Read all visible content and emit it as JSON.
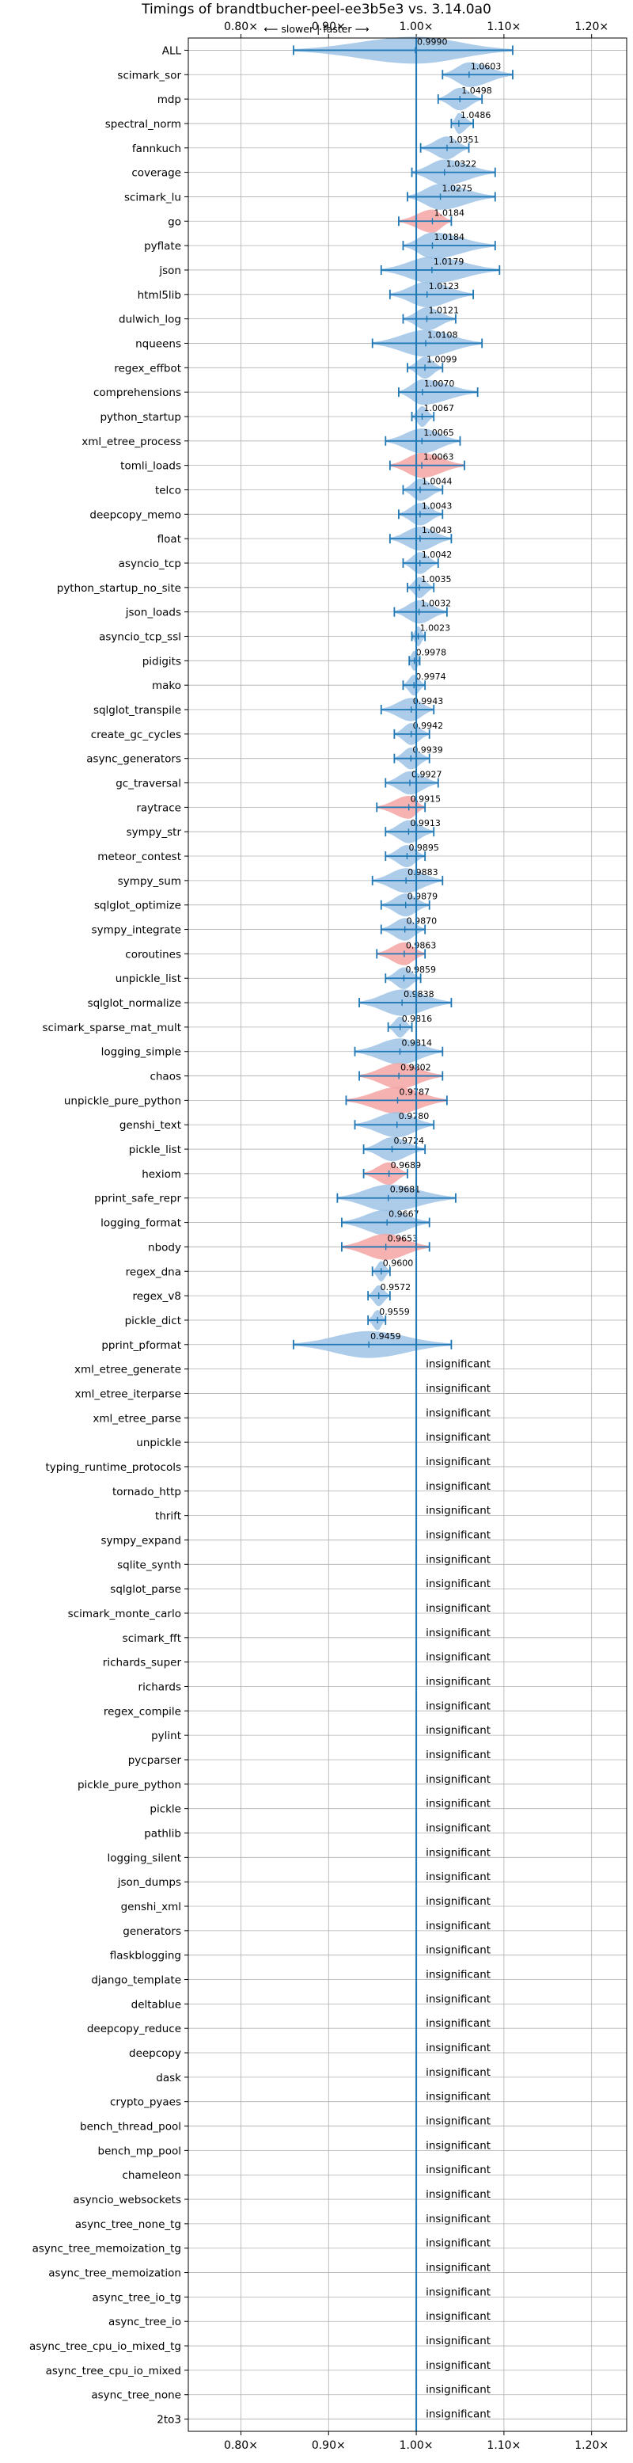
{
  "chart_data": {
    "type": "violin",
    "title": "Timings of brandtbucher-peel-ee3b5e3 vs. 3.14.0a0",
    "direction_note": "⟵ slower | faster ⟶",
    "xlim": [
      0.74,
      1.24
    ],
    "x_ticks": [
      0.8,
      0.9,
      1.0,
      1.1,
      1.2
    ],
    "x_tick_labels": [
      "0.80×",
      "0.90×",
      "1.00×",
      "1.10×",
      "1.20×"
    ],
    "tick_labels_top_and_bottom": true,
    "grid": true,
    "reference_line": 1.0,
    "colors": {
      "faster": "#9ec3e6",
      "slower": "#f4a3a3",
      "whisker": "#1f77b4",
      "grid": "#b0b0b0",
      "reference": "#1f77b4"
    },
    "insignificant_label": "insignificant",
    "benchmarks": [
      {
        "name": "ALL",
        "value": 0.999,
        "label": "0.9990",
        "lo": 0.86,
        "hi": 1.11,
        "color": "faster"
      },
      {
        "name": "scimark_sor",
        "value": 1.0603,
        "label": "1.0603",
        "lo": 1.03,
        "hi": 1.11,
        "color": "faster"
      },
      {
        "name": "mdp",
        "value": 1.0498,
        "label": "1.0498",
        "lo": 1.025,
        "hi": 1.075,
        "color": "faster"
      },
      {
        "name": "spectral_norm",
        "value": 1.0486,
        "label": "1.0486",
        "lo": 1.04,
        "hi": 1.065,
        "color": "faster"
      },
      {
        "name": "fannkuch",
        "value": 1.0351,
        "label": "1.0351",
        "lo": 1.005,
        "hi": 1.06,
        "color": "faster"
      },
      {
        "name": "coverage",
        "value": 1.0322,
        "label": "1.0322",
        "lo": 0.995,
        "hi": 1.09,
        "color": "faster"
      },
      {
        "name": "scimark_lu",
        "value": 1.0275,
        "label": "1.0275",
        "lo": 0.99,
        "hi": 1.09,
        "color": "faster"
      },
      {
        "name": "go",
        "value": 1.0184,
        "label": "1.0184",
        "lo": 0.98,
        "hi": 1.04,
        "color": "slower"
      },
      {
        "name": "pyflate",
        "value": 1.0184,
        "label": "1.0184",
        "lo": 0.985,
        "hi": 1.09,
        "color": "faster"
      },
      {
        "name": "json",
        "value": 1.0179,
        "label": "1.0179",
        "lo": 0.96,
        "hi": 1.095,
        "color": "faster"
      },
      {
        "name": "html5lib",
        "value": 1.0123,
        "label": "1.0123",
        "lo": 0.97,
        "hi": 1.065,
        "color": "faster"
      },
      {
        "name": "dulwich_log",
        "value": 1.0121,
        "label": "1.0121",
        "lo": 0.985,
        "hi": 1.045,
        "color": "faster"
      },
      {
        "name": "nqueens",
        "value": 1.0108,
        "label": "1.0108",
        "lo": 0.95,
        "hi": 1.075,
        "color": "faster"
      },
      {
        "name": "regex_effbot",
        "value": 1.0099,
        "label": "1.0099",
        "lo": 0.99,
        "hi": 1.03,
        "color": "faster"
      },
      {
        "name": "comprehensions",
        "value": 1.007,
        "label": "1.0070",
        "lo": 0.98,
        "hi": 1.07,
        "color": "faster"
      },
      {
        "name": "python_startup",
        "value": 1.0067,
        "label": "1.0067",
        "lo": 0.995,
        "hi": 1.02,
        "color": "faster"
      },
      {
        "name": "xml_etree_process",
        "value": 1.0065,
        "label": "1.0065",
        "lo": 0.965,
        "hi": 1.05,
        "color": "faster"
      },
      {
        "name": "tomli_loads",
        "value": 1.0063,
        "label": "1.0063",
        "lo": 0.97,
        "hi": 1.055,
        "color": "slower"
      },
      {
        "name": "telco",
        "value": 1.0044,
        "label": "1.0044",
        "lo": 0.985,
        "hi": 1.03,
        "color": "faster"
      },
      {
        "name": "deepcopy_memo",
        "value": 1.0043,
        "label": "1.0043",
        "lo": 0.98,
        "hi": 1.03,
        "color": "faster"
      },
      {
        "name": "float",
        "value": 1.0043,
        "label": "1.0043",
        "lo": 0.97,
        "hi": 1.04,
        "color": "faster"
      },
      {
        "name": "asyncio_tcp",
        "value": 1.0042,
        "label": "1.0042",
        "lo": 0.985,
        "hi": 1.025,
        "color": "faster"
      },
      {
        "name": "python_startup_no_site",
        "value": 1.0035,
        "label": "1.0035",
        "lo": 0.99,
        "hi": 1.02,
        "color": "faster"
      },
      {
        "name": "json_loads",
        "value": 1.0032,
        "label": "1.0032",
        "lo": 0.975,
        "hi": 1.035,
        "color": "faster"
      },
      {
        "name": "asyncio_tcp_ssl",
        "value": 1.0023,
        "label": "1.0023",
        "lo": 0.995,
        "hi": 1.01,
        "color": "faster"
      },
      {
        "name": "pidigits",
        "value": 0.9978,
        "label": "0.9978",
        "lo": 0.992,
        "hi": 1.004,
        "color": "faster"
      },
      {
        "name": "mako",
        "value": 0.9974,
        "label": "0.9974",
        "lo": 0.985,
        "hi": 1.01,
        "color": "faster"
      },
      {
        "name": "sqlglot_transpile",
        "value": 0.9943,
        "label": "0.9943",
        "lo": 0.96,
        "hi": 1.02,
        "color": "faster"
      },
      {
        "name": "create_gc_cycles",
        "value": 0.9942,
        "label": "0.9942",
        "lo": 0.975,
        "hi": 1.015,
        "color": "faster"
      },
      {
        "name": "async_generators",
        "value": 0.9939,
        "label": "0.9939",
        "lo": 0.975,
        "hi": 1.015,
        "color": "faster"
      },
      {
        "name": "gc_traversal",
        "value": 0.9927,
        "label": "0.9927",
        "lo": 0.965,
        "hi": 1.025,
        "color": "faster"
      },
      {
        "name": "raytrace",
        "value": 0.9915,
        "label": "0.9915",
        "lo": 0.955,
        "hi": 1.01,
        "color": "slower"
      },
      {
        "name": "sympy_str",
        "value": 0.9913,
        "label": "0.9913",
        "lo": 0.965,
        "hi": 1.02,
        "color": "faster"
      },
      {
        "name": "meteor_contest",
        "value": 0.9895,
        "label": "0.9895",
        "lo": 0.965,
        "hi": 1.01,
        "color": "faster"
      },
      {
        "name": "sympy_sum",
        "value": 0.9883,
        "label": "0.9883",
        "lo": 0.95,
        "hi": 1.03,
        "color": "faster"
      },
      {
        "name": "sqlglot_optimize",
        "value": 0.9879,
        "label": "0.9879",
        "lo": 0.96,
        "hi": 1.015,
        "color": "faster"
      },
      {
        "name": "sympy_integrate",
        "value": 0.987,
        "label": "0.9870",
        "lo": 0.96,
        "hi": 1.01,
        "color": "faster"
      },
      {
        "name": "coroutines",
        "value": 0.9863,
        "label": "0.9863",
        "lo": 0.955,
        "hi": 1.01,
        "color": "slower"
      },
      {
        "name": "unpickle_list",
        "value": 0.9859,
        "label": "0.9859",
        "lo": 0.965,
        "hi": 1.005,
        "color": "faster"
      },
      {
        "name": "sqlglot_normalize",
        "value": 0.9838,
        "label": "0.9838",
        "lo": 0.935,
        "hi": 1.04,
        "color": "faster"
      },
      {
        "name": "scimark_sparse_mat_mult",
        "value": 0.9816,
        "label": "0.9816",
        "lo": 0.968,
        "hi": 0.995,
        "color": "faster"
      },
      {
        "name": "logging_simple",
        "value": 0.9814,
        "label": "0.9814",
        "lo": 0.93,
        "hi": 1.03,
        "color": "faster"
      },
      {
        "name": "chaos",
        "value": 0.9802,
        "label": "0.9802",
        "lo": 0.935,
        "hi": 1.03,
        "color": "slower"
      },
      {
        "name": "unpickle_pure_python",
        "value": 0.9787,
        "label": "0.9787",
        "lo": 0.92,
        "hi": 1.035,
        "color": "slower"
      },
      {
        "name": "genshi_text",
        "value": 0.978,
        "label": "0.9780",
        "lo": 0.93,
        "hi": 1.02,
        "color": "faster"
      },
      {
        "name": "pickle_list",
        "value": 0.9724,
        "label": "0.9724",
        "lo": 0.94,
        "hi": 1.01,
        "color": "faster"
      },
      {
        "name": "hexiom",
        "value": 0.9689,
        "label": "0.9689",
        "lo": 0.94,
        "hi": 0.99,
        "color": "slower"
      },
      {
        "name": "pprint_safe_repr",
        "value": 0.9681,
        "label": "0.9681",
        "lo": 0.91,
        "hi": 1.045,
        "color": "faster"
      },
      {
        "name": "logging_format",
        "value": 0.9667,
        "label": "0.9667",
        "lo": 0.915,
        "hi": 1.015,
        "color": "faster"
      },
      {
        "name": "nbody",
        "value": 0.9653,
        "label": "0.9653",
        "lo": 0.915,
        "hi": 1.015,
        "color": "slower"
      },
      {
        "name": "regex_dna",
        "value": 0.96,
        "label": "0.9600",
        "lo": 0.95,
        "hi": 0.97,
        "color": "faster"
      },
      {
        "name": "regex_v8",
        "value": 0.9572,
        "label": "0.9572",
        "lo": 0.945,
        "hi": 0.97,
        "color": "faster"
      },
      {
        "name": "pickle_dict",
        "value": 0.9559,
        "label": "0.9559",
        "lo": 0.945,
        "hi": 0.965,
        "color": "faster"
      },
      {
        "name": "pprint_pformat",
        "value": 0.9459,
        "label": "0.9459",
        "lo": 0.86,
        "hi": 1.04,
        "color": "faster"
      },
      {
        "name": "xml_etree_generate",
        "insignificant": true
      },
      {
        "name": "xml_etree_iterparse",
        "insignificant": true
      },
      {
        "name": "xml_etree_parse",
        "insignificant": true
      },
      {
        "name": "unpickle",
        "insignificant": true
      },
      {
        "name": "typing_runtime_protocols",
        "insignificant": true
      },
      {
        "name": "tornado_http",
        "insignificant": true
      },
      {
        "name": "thrift",
        "insignificant": true
      },
      {
        "name": "sympy_expand",
        "insignificant": true
      },
      {
        "name": "sqlite_synth",
        "insignificant": true
      },
      {
        "name": "sqlglot_parse",
        "insignificant": true
      },
      {
        "name": "scimark_monte_carlo",
        "insignificant": true
      },
      {
        "name": "scimark_fft",
        "insignificant": true
      },
      {
        "name": "richards_super",
        "insignificant": true
      },
      {
        "name": "richards",
        "insignificant": true
      },
      {
        "name": "regex_compile",
        "insignificant": true
      },
      {
        "name": "pylint",
        "insignificant": true
      },
      {
        "name": "pycparser",
        "insignificant": true
      },
      {
        "name": "pickle_pure_python",
        "insignificant": true
      },
      {
        "name": "pickle",
        "insignificant": true
      },
      {
        "name": "pathlib",
        "insignificant": true
      },
      {
        "name": "logging_silent",
        "insignificant": true
      },
      {
        "name": "json_dumps",
        "insignificant": true
      },
      {
        "name": "genshi_xml",
        "insignificant": true
      },
      {
        "name": "generators",
        "insignificant": true
      },
      {
        "name": "flaskblogging",
        "insignificant": true
      },
      {
        "name": "django_template",
        "insignificant": true
      },
      {
        "name": "deltablue",
        "insignificant": true
      },
      {
        "name": "deepcopy_reduce",
        "insignificant": true
      },
      {
        "name": "deepcopy",
        "insignificant": true
      },
      {
        "name": "dask",
        "insignificant": true
      },
      {
        "name": "crypto_pyaes",
        "insignificant": true
      },
      {
        "name": "bench_thread_pool",
        "insignificant": true
      },
      {
        "name": "bench_mp_pool",
        "insignificant": true
      },
      {
        "name": "chameleon",
        "insignificant": true
      },
      {
        "name": "asyncio_websockets",
        "insignificant": true
      },
      {
        "name": "async_tree_none_tg",
        "insignificant": true
      },
      {
        "name": "async_tree_memoization_tg",
        "insignificant": true
      },
      {
        "name": "async_tree_memoization",
        "insignificant": true
      },
      {
        "name": "async_tree_io_tg",
        "insignificant": true
      },
      {
        "name": "async_tree_io",
        "insignificant": true
      },
      {
        "name": "async_tree_cpu_io_mixed_tg",
        "insignificant": true
      },
      {
        "name": "async_tree_cpu_io_mixed",
        "insignificant": true
      },
      {
        "name": "async_tree_none",
        "insignificant": true
      },
      {
        "name": "2to3",
        "insignificant": true
      }
    ]
  }
}
